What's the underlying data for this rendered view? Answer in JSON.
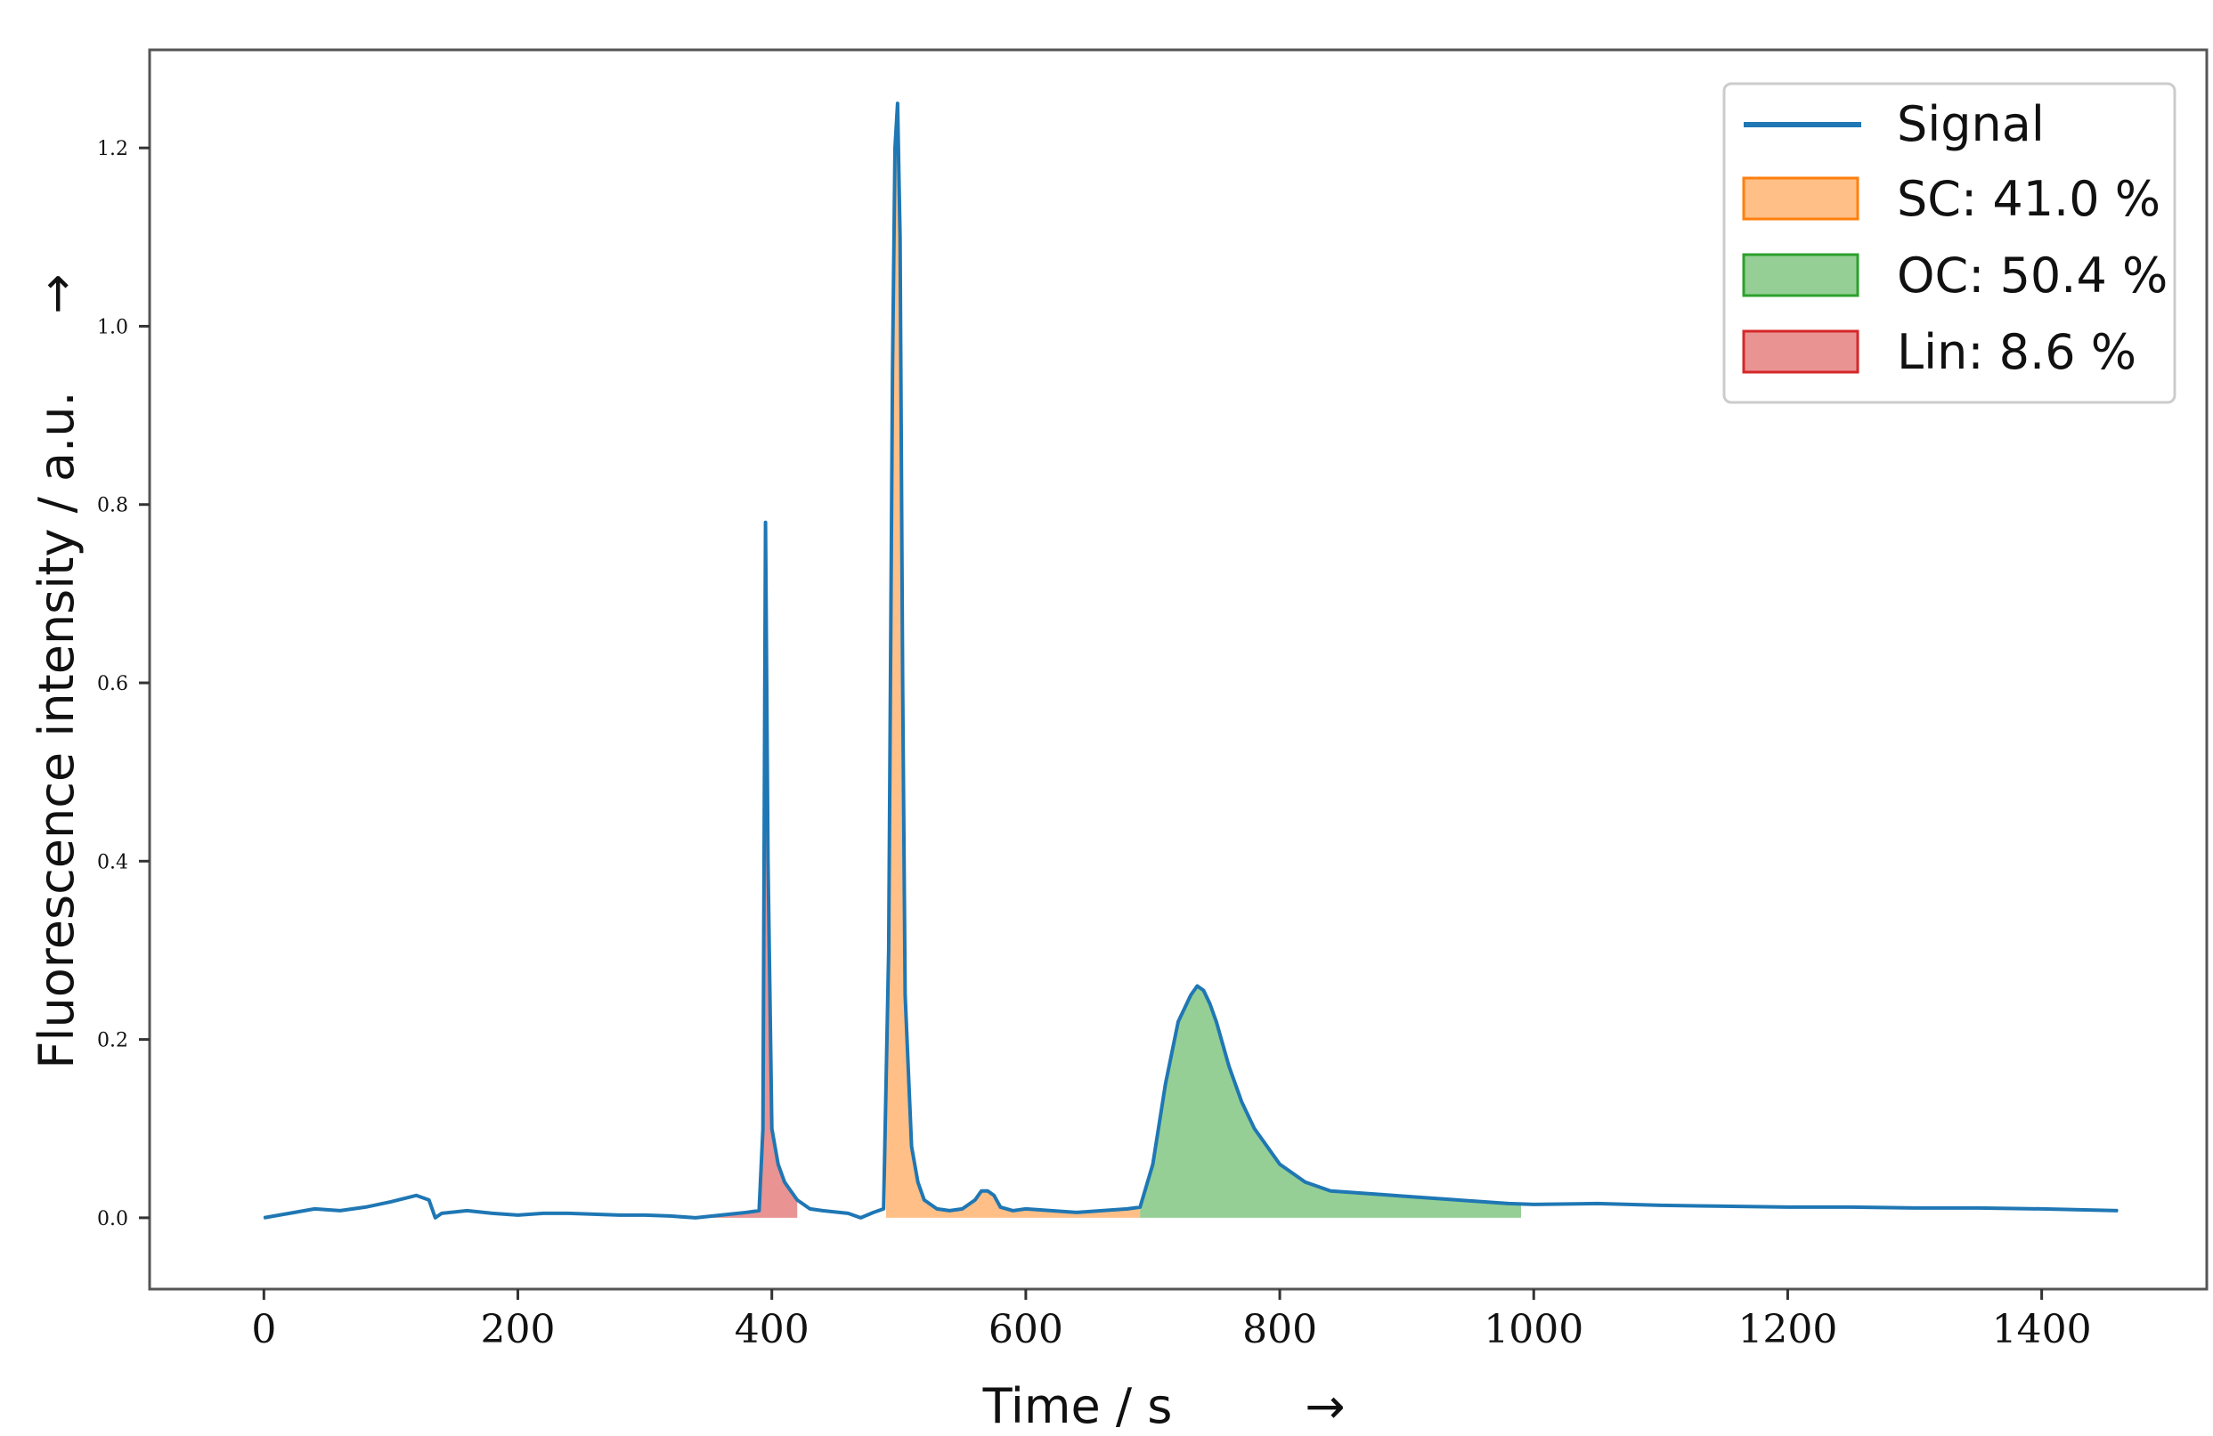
{
  "chart_data": {
    "type": "line",
    "xlabel": "Time / s",
    "ylabel": "Fluorescence intensity / a.u.",
    "x_arrow": "→",
    "y_arrow": "→",
    "xlim": [
      -90,
      1530
    ],
    "ylim": [
      -0.08,
      1.31
    ],
    "xticks": [
      0,
      200,
      400,
      600,
      800,
      1000,
      1200,
      1400
    ],
    "yticks": [
      0.0,
      0.2,
      0.4,
      0.6,
      0.8,
      1.0,
      1.2
    ],
    "grid": false,
    "legend_position": "top-right",
    "series": [
      {
        "name": "Signal",
        "color": "#1f77b4",
        "x": [
          0,
          20,
          40,
          60,
          80,
          100,
          120,
          130,
          135,
          140,
          160,
          180,
          200,
          220,
          240,
          260,
          280,
          300,
          320,
          340,
          360,
          380,
          390,
          393,
          395,
          397,
          400,
          405,
          410,
          420,
          430,
          440,
          460,
          470,
          480,
          488,
          492,
          495,
          497,
          499,
          501,
          503,
          505,
          510,
          515,
          520,
          530,
          540,
          550,
          560,
          565,
          570,
          575,
          580,
          590,
          600,
          620,
          640,
          660,
          680,
          690,
          700,
          710,
          720,
          730,
          735,
          740,
          745,
          750,
          760,
          770,
          780,
          800,
          820,
          840,
          860,
          880,
          900,
          920,
          940,
          960,
          980,
          1000,
          1050,
          1100,
          1150,
          1200,
          1250,
          1300,
          1350,
          1400,
          1460
        ],
        "y": [
          0.0,
          0.005,
          0.01,
          0.008,
          0.012,
          0.018,
          0.025,
          0.02,
          0.0,
          0.005,
          0.008,
          0.005,
          0.003,
          0.005,
          0.005,
          0.004,
          0.003,
          0.003,
          0.002,
          0.0,
          0.003,
          0.006,
          0.008,
          0.1,
          0.78,
          0.4,
          0.1,
          0.06,
          0.04,
          0.02,
          0.01,
          0.008,
          0.005,
          0.0,
          0.006,
          0.01,
          0.3,
          0.95,
          1.2,
          1.25,
          1.1,
          0.6,
          0.25,
          0.08,
          0.04,
          0.02,
          0.01,
          0.008,
          0.01,
          0.02,
          0.03,
          0.03,
          0.025,
          0.012,
          0.008,
          0.01,
          0.008,
          0.006,
          0.008,
          0.01,
          0.012,
          0.06,
          0.15,
          0.22,
          0.25,
          0.26,
          0.255,
          0.24,
          0.22,
          0.17,
          0.13,
          0.1,
          0.06,
          0.04,
          0.03,
          0.028,
          0.026,
          0.024,
          0.022,
          0.02,
          0.018,
          0.016,
          0.015,
          0.016,
          0.014,
          0.013,
          0.012,
          0.012,
          0.011,
          0.011,
          0.01,
          0.008
        ]
      }
    ],
    "regions": [
      {
        "name": "SC: 41.0 %",
        "color": "#ff7f0e",
        "x_range": [
          490,
          690
        ],
        "label_html_segments": [
          "SC:",
          "41.0",
          "%"
        ]
      },
      {
        "name": "OC: 50.4 %",
        "color": "#2ca02c",
        "x_range": [
          690,
          990
        ],
        "label_html_segments": [
          "OC:",
          "50.4",
          "%"
        ]
      },
      {
        "name": "Lin: 8.6 %",
        "color": "#d62728",
        "x_range": [
          350,
          420
        ],
        "label_html_segments": [
          "Lin:",
          "8.6",
          "%"
        ]
      }
    ]
  }
}
